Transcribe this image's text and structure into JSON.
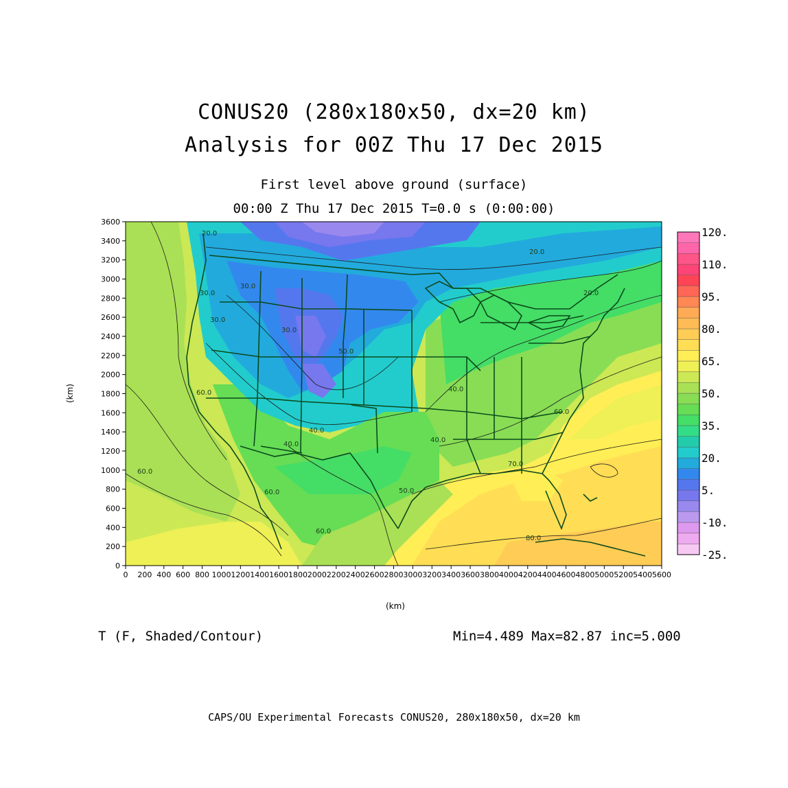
{
  "header": {
    "title_line1": "CONUS20 (280x180x50, dx=20 km)",
    "title_line2": "Analysis for 00Z Thu 17 Dec 2015",
    "subtitle_line1": "First level above ground (surface)",
    "subtitle_line2": "00:00 Z Thu 17 Dec 2015    T=0.0 s (0:00:00)"
  },
  "axes": {
    "x_label": "(km)",
    "y_label": "(km)",
    "x_range": [
      0,
      5600
    ],
    "y_range": [
      0,
      3600
    ],
    "x_ticks": [
      "0",
      "200",
      "400",
      "600",
      "800",
      "1000",
      "1200",
      "1400",
      "1600",
      "1800",
      "2000",
      "2200",
      "2400",
      "2600",
      "2800",
      "3000",
      "3200",
      "3400",
      "3600",
      "3800",
      "4000",
      "4200",
      "4400",
      "4600",
      "4800",
      "5000",
      "5200",
      "5400",
      "5600"
    ],
    "y_ticks": [
      "0",
      "200",
      "400",
      "600",
      "800",
      "1000",
      "1200",
      "1400",
      "1600",
      "1800",
      "2000",
      "2200",
      "2400",
      "2600",
      "2800",
      "3000",
      "3200",
      "3400",
      "3600"
    ]
  },
  "colorbar": {
    "labels": [
      "120.",
      "110.",
      "95.",
      "80.",
      "65.",
      "50.",
      "35.",
      "20.",
      "5.",
      "-10.",
      "-25."
    ],
    "colors": [
      "#f7c8f2",
      "#eeaaee",
      "#dd99ee",
      "#bb99ee",
      "#9988ee",
      "#7777ee",
      "#5577ee",
      "#3388ee",
      "#22aadd",
      "#22cccc",
      "#22ccaa",
      "#33dd88",
      "#44dd66",
      "#66dd55",
      "#88dd55",
      "#aae055",
      "#cce855",
      "#eef055",
      "#ffee55",
      "#ffdd55",
      "#ffcc55",
      "#ffbb55",
      "#ffaa55",
      "#ff8855",
      "#ff6655",
      "#ff4455",
      "#ff4477",
      "#ff5588",
      "#ff66aa",
      "#ff77bb"
    ]
  },
  "contour_labels": [
    "20.0",
    "30.0",
    "30.0",
    "30.0",
    "40.0",
    "40.0",
    "40.0",
    "40.0",
    "50.0",
    "50.0",
    "60.0",
    "60.0",
    "60.0",
    "60.0",
    "60.0",
    "70.0",
    "80.0",
    "20.0",
    "20.0",
    "30.0"
  ],
  "field_label": "T (F, Shaded/Contour)",
  "stats": "Min=4.489 Max=82.87 inc=5.000",
  "footer": "CAPS/OU Experimental Forecasts  CONUS20, 280x180x50, dx=20 km"
}
